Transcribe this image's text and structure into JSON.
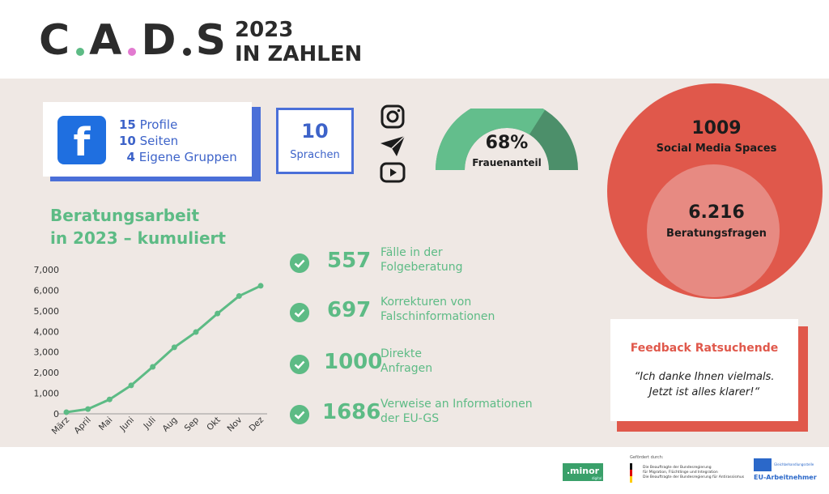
{
  "header": {
    "logo_letters": [
      "C",
      "A",
      "D",
      "S"
    ],
    "title_line1": "2023",
    "title_line2": "IN ZAHLEN",
    "colors": {
      "dark": "#2c2c2c",
      "green": "#5dbb85",
      "pink": "#e27ad0"
    }
  },
  "facebook": {
    "icon": "facebook-icon",
    "lines": [
      {
        "num": "15",
        "label": "Profile"
      },
      {
        "num": "10",
        "label": "Seiten"
      },
      {
        "num": "4",
        "label": "Eigene Gruppen"
      }
    ]
  },
  "languages": {
    "num": "10",
    "label": "Sprachen"
  },
  "social_icons": [
    "instagram-icon",
    "paper-plane-icon",
    "youtube-icon"
  ],
  "gauge": {
    "value": 68,
    "label": "68%",
    "caption": "Frauenanteil"
  },
  "circles": {
    "outer": {
      "num": "1009",
      "label": "Social Media Spaces"
    },
    "inner": {
      "num": "6.216",
      "label": "Beratungsfragen"
    }
  },
  "section": {
    "title_line1": "Beratungsarbeit",
    "title_line2": "in 2023 – kumuliert"
  },
  "stats": [
    {
      "num": "557",
      "line1": "Fälle in der",
      "line2": "Folgeberatung"
    },
    {
      "num": "697",
      "line1": "Korrekturen von",
      "line2": "Falschinformationen"
    },
    {
      "num": "1000",
      "line1": "Direkte",
      "line2": "Anfragen"
    },
    {
      "num": "1686",
      "line1": "Verweise an Informationen",
      "line2": "der EU-GS"
    }
  ],
  "feedback": {
    "title": "Feedback Ratsuchende",
    "quote_line1": "“Ich danke Ihnen vielmals.",
    "quote_line2": "Jetzt ist alles klarer!“"
  },
  "footer": {
    "minor": ".minor",
    "minor_sub": "digital",
    "gefoerdert": "Gefördert durch:",
    "gov_lines": [
      "Die Beauftragte der Bundesregierung",
      "für Migration, Flüchtlinge und Integration",
      "Die Beauftragte der Bundesregierung für Antirassismus"
    ],
    "eu_name": "EU-Arbeitnehmer",
    "eu_small": "Gleichbehandlungsstelle"
  },
  "chart_data": {
    "type": "line",
    "categories": [
      "März",
      "April",
      "Mai",
      "Juni",
      "Juli",
      "Aug",
      "Sep",
      "Okt",
      "Nov",
      "Dez"
    ],
    "series": [
      {
        "values": [
          80,
          230,
          700,
          1380,
          2280,
          3230,
          3970,
          4870,
          5720,
          6216
        ]
      }
    ],
    "yticks": [
      "0",
      "1,000",
      "2,000",
      "3,000",
      "4,000",
      "5,000",
      "6,000",
      "7,000"
    ],
    "ylim": [
      0,
      7000
    ],
    "grid": false,
    "color": "#5dbb85"
  }
}
